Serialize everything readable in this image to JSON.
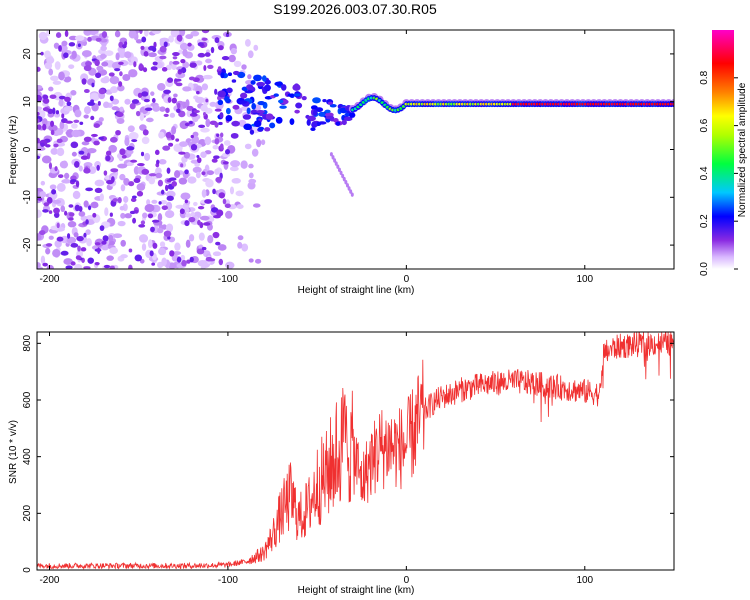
{
  "title": "S199.2026.003.07.30.R05",
  "chart_data": [
    {
      "type": "heatmap",
      "name": "spectrogram",
      "xlabel": "Height of straight line (km)",
      "ylabel": "Frequency (Hz)",
      "xlim": [
        -207,
        150
      ],
      "ylim": [
        -25,
        25
      ],
      "xticks": [
        -200,
        -100,
        0,
        100
      ],
      "yticks": [
        -20,
        -10,
        0,
        10,
        20
      ],
      "colorbar": {
        "label": "Normalized spectral amplitude",
        "range": [
          0,
          1
        ],
        "ticks": [
          0.0,
          0.2,
          0.4,
          0.6,
          0.8
        ],
        "tick_labels": [
          "0.0",
          "0.2",
          "0.4",
          "0.6",
          "0.8"
        ],
        "colors": [
          "#ffffff",
          "#c8a2ff",
          "#8a2be2",
          "#0000ff",
          "#00ffff",
          "#00ff00",
          "#ffff00",
          "#ff8000",
          "#ff0000",
          "#ff00ff"
        ]
      },
      "features": {
        "noise_region_x": [
          -207,
          -80
        ],
        "transition_region_x": [
          -80,
          -30
        ],
        "tone_frequency_hz": 9.5,
        "tone_start_x": -30,
        "tone_end_x": 150,
        "peak_amplitude_start_x": 60
      }
    },
    {
      "type": "line",
      "name": "snr",
      "xlabel": "Height of straight line (km)",
      "ylabel": "SNR (10 * v/v)",
      "xlim": [
        -207,
        150
      ],
      "ylim": [
        0,
        840
      ],
      "xticks": [
        -200,
        -100,
        0,
        100
      ],
      "yticks": [
        0,
        200,
        400,
        600,
        800
      ],
      "color": "#f03030",
      "x": [
        -207,
        -180,
        -150,
        -120,
        -100,
        -90,
        -80,
        -75,
        -70,
        -65,
        -60,
        -55,
        -50,
        -45,
        -40,
        -35,
        -30,
        -25,
        -20,
        -15,
        -10,
        -5,
        0,
        5,
        10,
        15,
        20,
        25,
        30,
        40,
        50,
        60,
        70,
        80,
        90,
        100,
        105,
        109,
        110,
        115,
        120,
        130,
        140,
        150
      ],
      "values": [
        15,
        15,
        15,
        15,
        18,
        30,
        60,
        120,
        200,
        260,
        180,
        220,
        300,
        330,
        400,
        450,
        420,
        310,
        380,
        430,
        440,
        430,
        440,
        500,
        560,
        590,
        610,
        620,
        635,
        650,
        660,
        665,
        660,
        650,
        640,
        630,
        625,
        620,
        760,
        780,
        790,
        795,
        800,
        800
      ]
    }
  ]
}
